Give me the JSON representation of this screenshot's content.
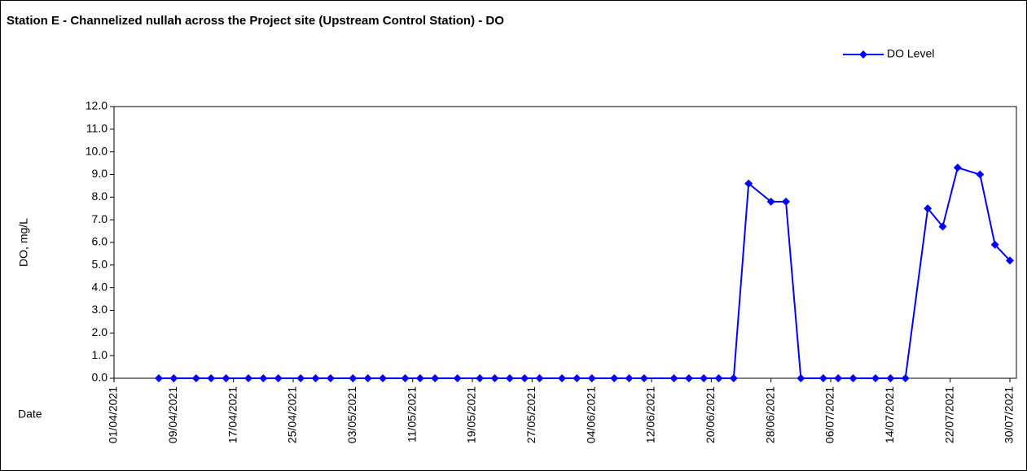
{
  "chart_data": {
    "type": "line",
    "title": "Station E - Channelized nullah across the Project site (Upstream Control Station) - DO",
    "ylabel": "DO, mg/L",
    "xlabel": "Date",
    "x": [
      "07/04/2021",
      "09/04/2021",
      "12/04/2021",
      "14/04/2021",
      "16/04/2021",
      "19/04/2021",
      "21/04/2021",
      "23/04/2021",
      "26/04/2021",
      "28/04/2021",
      "30/04/2021",
      "03/05/2021",
      "05/05/2021",
      "07/05/2021",
      "10/05/2021",
      "12/05/2021",
      "14/05/2021",
      "17/05/2021",
      "20/05/2021",
      "22/05/2021",
      "24/05/2021",
      "26/05/2021",
      "28/05/2021",
      "31/05/2021",
      "02/06/2021",
      "04/06/2021",
      "07/06/2021",
      "09/06/2021",
      "11/06/2021",
      "15/06/2021",
      "17/06/2021",
      "19/06/2021",
      "21/06/2021",
      "23/06/2021",
      "25/06/2021",
      "28/06/2021",
      "30/06/2021",
      "02/07/2021",
      "05/07/2021",
      "07/07/2021",
      "09/07/2021",
      "12/07/2021",
      "14/07/2021",
      "16/07/2021",
      "19/07/2021",
      "21/07/2021",
      "23/07/2021",
      "26/07/2021",
      "28/07/2021",
      "30/07/2021"
    ],
    "series": [
      {
        "name": "DO Level",
        "color": "#0000ff",
        "values": [
          0,
          0,
          0,
          0,
          0,
          0,
          0,
          0,
          0,
          0,
          0,
          0,
          0,
          0,
          0,
          0,
          0,
          0,
          0,
          0,
          0,
          0,
          0,
          0,
          0,
          0,
          0,
          0,
          0,
          0,
          0,
          0,
          0,
          0,
          8.6,
          7.8,
          7.8,
          0,
          0,
          0,
          0,
          0,
          0,
          0,
          7.5,
          6.7,
          9.3,
          9.0,
          5.9,
          5.2
        ]
      }
    ],
    "xlim": [
      "01/04/2021",
      "30/07/2021"
    ],
    "xticks": [
      "01/04/2021",
      "09/04/2021",
      "17/04/2021",
      "25/04/2021",
      "03/05/2021",
      "11/05/2021",
      "19/05/2021",
      "27/05/2021",
      "04/06/2021",
      "12/06/2021",
      "20/06/2021",
      "28/06/2021",
      "06/07/2021",
      "14/07/2021",
      "22/07/2021",
      "30/07/2021"
    ],
    "ylim": [
      0,
      12
    ],
    "yticks": [
      {
        "value": 0,
        "label": "0.0"
      },
      {
        "value": 1,
        "label": "1.0"
      },
      {
        "value": 2,
        "label": "2.0"
      },
      {
        "value": 3,
        "label": "3.0"
      },
      {
        "value": 4,
        "label": "4.0"
      },
      {
        "value": 5,
        "label": "5.0"
      },
      {
        "value": 6,
        "label": "6.0"
      },
      {
        "value": 7,
        "label": "7.0"
      },
      {
        "value": 8,
        "label": "8.0"
      },
      {
        "value": 9,
        "label": "9.0"
      },
      {
        "value": 10,
        "label": "10.0"
      },
      {
        "value": 11,
        "label": "11.0"
      },
      {
        "value": 12,
        "label": "12.0"
      }
    ],
    "grid": false,
    "legend": "top-right"
  }
}
